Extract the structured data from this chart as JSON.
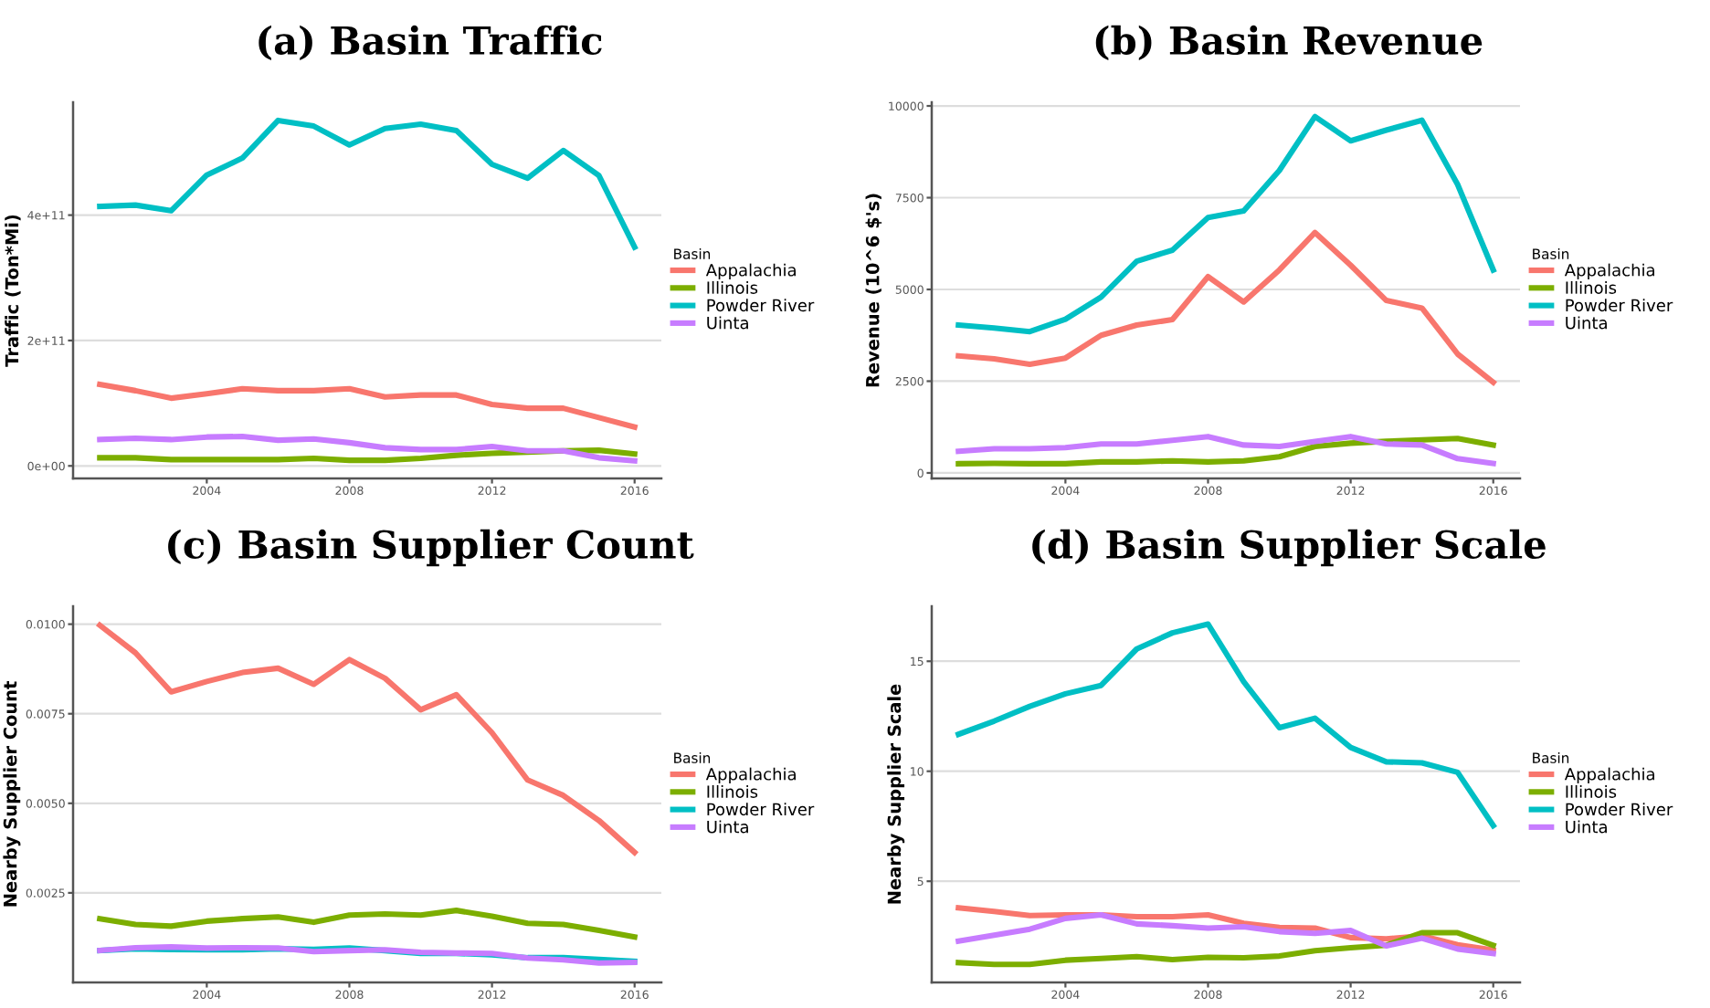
{
  "chart_data": [
    {
      "type": "line",
      "title": "(a) Basin Traffic",
      "ylabel": "Traffic (Ton*Mi)",
      "legend_title": "Basin",
      "legend": "right",
      "grid": "y",
      "x": [
        2001,
        2002,
        2003,
        2004,
        2005,
        2006,
        2007,
        2008,
        2009,
        2010,
        2011,
        2012,
        2013,
        2014,
        2015,
        2016
      ],
      "xlim": [
        2000.25,
        2016.75
      ],
      "xticks": [
        2004,
        2008,
        2012,
        2016
      ],
      "ylim": [
        -20000000000.0,
        580000000000.0
      ],
      "yticks": [
        {
          "value": 0,
          "label": "0e+00"
        },
        {
          "value": 200000000000.0,
          "label": "2e+11"
        },
        {
          "value": 400000000000.0,
          "label": "4e+11"
        }
      ],
      "series": [
        {
          "name": "Appalachia",
          "color": "#f8766d",
          "values": [
            130000000000.0,
            120000000000.0,
            108000000000.0,
            115000000000.0,
            123000000000.0,
            120000000000.0,
            120000000000.0,
            123000000000.0,
            110000000000.0,
            113000000000.0,
            113000000000.0,
            98000000000.0,
            92000000000.0,
            92000000000.0,
            77000000000.0,
            62000000000.0
          ]
        },
        {
          "name": "Illinois",
          "color": "#7cae00",
          "values": [
            13000000000.0,
            13000000000.0,
            10000000000.0,
            10000000000.0,
            10000000000.0,
            10000000000.0,
            12000000000.0,
            9000000000.0,
            9000000000.0,
            12000000000.0,
            17000000000.0,
            20000000000.0,
            22000000000.0,
            24000000000.0,
            25000000000.0,
            19000000000.0
          ]
        },
        {
          "name": "Powder River",
          "color": "#00bfc4",
          "values": [
            414000000000.0,
            416000000000.0,
            407000000000.0,
            464000000000.0,
            491000000000.0,
            551000000000.0,
            542000000000.0,
            512000000000.0,
            538000000000.0,
            545000000000.0,
            535000000000.0,
            481000000000.0,
            459000000000.0,
            503000000000.0,
            463000000000.0,
            349000000000.0
          ]
        },
        {
          "name": "Uinta",
          "color": "#c77cff",
          "values": [
            42000000000.0,
            44000000000.0,
            42000000000.0,
            46000000000.0,
            47000000000.0,
            41000000000.0,
            43000000000.0,
            37000000000.0,
            29000000000.0,
            26000000000.0,
            26000000000.0,
            31000000000.0,
            24000000000.0,
            24000000000.0,
            13000000000.0,
            8000000000.0
          ]
        }
      ]
    },
    {
      "type": "line",
      "title": "(b) Basin Revenue",
      "ylabel": "Revenue (10^6 $'s)",
      "legend_title": "Basin",
      "legend": "right",
      "grid": "y",
      "x": [
        2001,
        2002,
        2003,
        2004,
        2005,
        2006,
        2007,
        2008,
        2009,
        2010,
        2011,
        2012,
        2013,
        2014,
        2015,
        2016
      ],
      "xlim": [
        2000.25,
        2016.75
      ],
      "xticks": [
        2004,
        2008,
        2012,
        2016
      ],
      "ylim": [
        -150,
        10100
      ],
      "yticks": [
        0,
        2500,
        5000,
        7500,
        10000
      ],
      "series": [
        {
          "name": "Appalachia",
          "color": "#f8766d",
          "values": [
            3190,
            3110,
            2960,
            3130,
            3750,
            4030,
            4180,
            5350,
            4660,
            5530,
            6550,
            5660,
            4700,
            4490,
            3240,
            2470
          ]
        },
        {
          "name": "Illinois",
          "color": "#7cae00",
          "values": [
            250,
            260,
            250,
            250,
            300,
            300,
            330,
            300,
            330,
            440,
            720,
            810,
            860,
            900,
            940,
            760
          ]
        },
        {
          "name": "Powder River",
          "color": "#00bfc4",
          "values": [
            4030,
            3950,
            3850,
            4190,
            4790,
            5770,
            6070,
            6960,
            7140,
            8240,
            9710,
            9050,
            9340,
            9610,
            7860,
            5530
          ]
        },
        {
          "name": "Uinta",
          "color": "#c77cff",
          "values": [
            590,
            660,
            660,
            690,
            790,
            790,
            890,
            990,
            760,
            720,
            860,
            990,
            790,
            760,
            390,
            260
          ]
        }
      ]
    },
    {
      "type": "line",
      "title": "(c) Basin Supplier Count",
      "ylabel": "Nearby Supplier Count",
      "legend_title": "Basin",
      "legend": "right",
      "grid": "y",
      "x": [
        2001,
        2002,
        2003,
        2004,
        2005,
        2006,
        2007,
        2008,
        2009,
        2010,
        2011,
        2012,
        2013,
        2014,
        2015,
        2016
      ],
      "xlim": [
        2000.25,
        2016.75
      ],
      "xticks": [
        2004,
        2008,
        2012,
        2016
      ],
      "ylim": [
        0,
        0.0105
      ],
      "yticks": [
        {
          "value": 0.0025,
          "label": "0.0025"
        },
        {
          "value": 0.005,
          "label": "0.0050"
        },
        {
          "value": 0.0075,
          "label": "0.0075"
        },
        {
          "value": 0.01,
          "label": "0.0100"
        }
      ],
      "series": [
        {
          "name": "Appalachia",
          "color": "#f8766d",
          "values": [
            0.00997,
            0.0092,
            0.00811,
            0.0084,
            0.00865,
            0.00877,
            0.00832,
            0.00901,
            0.00849,
            0.00761,
            0.00803,
            0.00697,
            0.00565,
            0.00522,
            0.00452,
            0.00363
          ]
        },
        {
          "name": "Illinois",
          "color": "#7cae00",
          "values": [
            0.00178,
            0.00162,
            0.00157,
            0.00171,
            0.00178,
            0.00183,
            0.00168,
            0.00188,
            0.00191,
            0.00188,
            0.00201,
            0.00185,
            0.00165,
            0.00162,
            0.00145,
            0.00127
          ]
        },
        {
          "name": "Powder River",
          "color": "#00bfc4",
          "values": [
            0.00089,
            0.00094,
            0.00092,
            0.00091,
            0.00091,
            0.00094,
            0.00092,
            0.00096,
            0.00089,
            0.00081,
            0.00081,
            0.00077,
            0.00069,
            0.00069,
            0.00064,
            0.00059
          ]
        },
        {
          "name": "Uinta",
          "color": "#c77cff",
          "values": [
            0.00089,
            0.00097,
            0.00099,
            0.00096,
            0.00097,
            0.00096,
            0.00086,
            0.00089,
            0.00091,
            0.00084,
            0.00082,
            0.00081,
            0.00068,
            0.00063,
            0.00054,
            0.00056
          ]
        }
      ]
    },
    {
      "type": "line",
      "title": "(d) Basin Supplier Scale",
      "ylabel": "Nearby Supplier Scale",
      "legend_title": "Basin",
      "legend": "right",
      "grid": "y",
      "x": [
        2001,
        2002,
        2003,
        2004,
        2005,
        2006,
        2007,
        2008,
        2009,
        2010,
        2011,
        2012,
        2013,
        2014,
        2015,
        2016
      ],
      "xlim": [
        2000.25,
        2016.75
      ],
      "xticks": [
        2004,
        2008,
        2012,
        2016
      ],
      "ylim": [
        0.4,
        17.5
      ],
      "yticks": [
        5,
        10,
        15
      ],
      "series": [
        {
          "name": "Appalachia",
          "color": "#f8766d",
          "values": [
            3.79,
            3.63,
            3.44,
            3.47,
            3.47,
            3.39,
            3.39,
            3.47,
            3.09,
            2.9,
            2.87,
            2.44,
            2.38,
            2.52,
            2.11,
            1.87
          ]
        },
        {
          "name": "Illinois",
          "color": "#7cae00",
          "values": [
            1.3,
            1.22,
            1.22,
            1.41,
            1.49,
            1.57,
            1.44,
            1.54,
            1.52,
            1.6,
            1.84,
            1.98,
            2.09,
            2.66,
            2.66,
            2.09
          ]
        },
        {
          "name": "Powder River",
          "color": "#00bfc4",
          "values": [
            11.68,
            12.28,
            12.95,
            13.52,
            13.9,
            15.56,
            16.29,
            16.69,
            14.07,
            11.98,
            12.41,
            11.08,
            10.43,
            10.38,
            9.95,
            7.53
          ]
        },
        {
          "name": "Uinta",
          "color": "#c77cff",
          "values": [
            2.28,
            2.55,
            2.82,
            3.31,
            3.47,
            3.06,
            2.98,
            2.87,
            2.93,
            2.71,
            2.63,
            2.76,
            2.06,
            2.41,
            1.92,
            1.71
          ]
        }
      ]
    }
  ]
}
